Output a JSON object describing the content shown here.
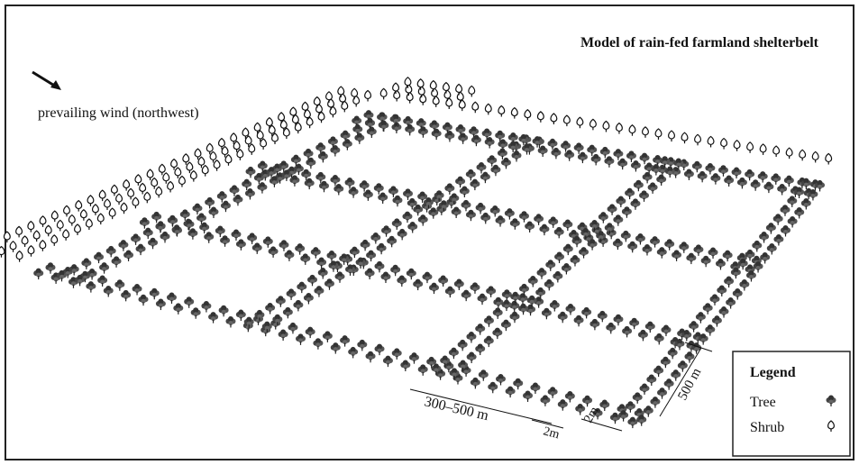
{
  "title": "Model of rain-fed farmland shelterbelt",
  "wind_label": "prevailing wind (northwest)",
  "legend": {
    "title": "Legend",
    "items": [
      {
        "label": "Tree"
      },
      {
        "label": "Shrub"
      }
    ]
  },
  "dimensions": {
    "belt_spacing": "300–500 m",
    "belt_length": "500 m",
    "row_gap_1": "2m",
    "row_gap_2": "2m"
  }
}
